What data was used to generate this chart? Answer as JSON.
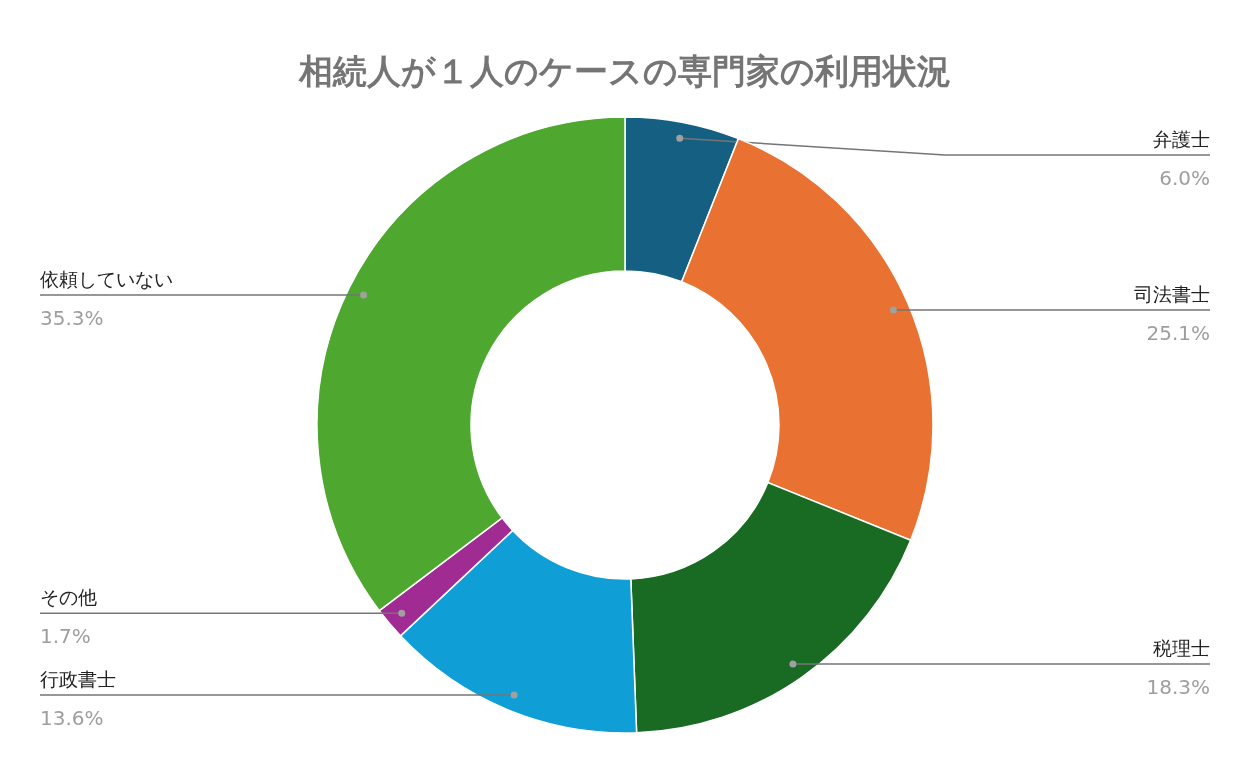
{
  "chart_data": {
    "type": "donut",
    "title": "相続人が１人のケースの専門家の利用状況",
    "categories": [
      "弁護士",
      "司法書士",
      "税理士",
      "行政書士",
      "その他",
      "依頼していない"
    ],
    "values": [
      6.0,
      25.1,
      18.3,
      13.6,
      1.7,
      35.3
    ],
    "colors": [
      "#156082",
      "#e97132",
      "#196b24",
      "#0f9ed5",
      "#a02b93",
      "#4ea72e"
    ],
    "value_labels": [
      "6.0%",
      "25.1%",
      "18.3%",
      "13.6%",
      "1.7%",
      "35.3%"
    ]
  }
}
